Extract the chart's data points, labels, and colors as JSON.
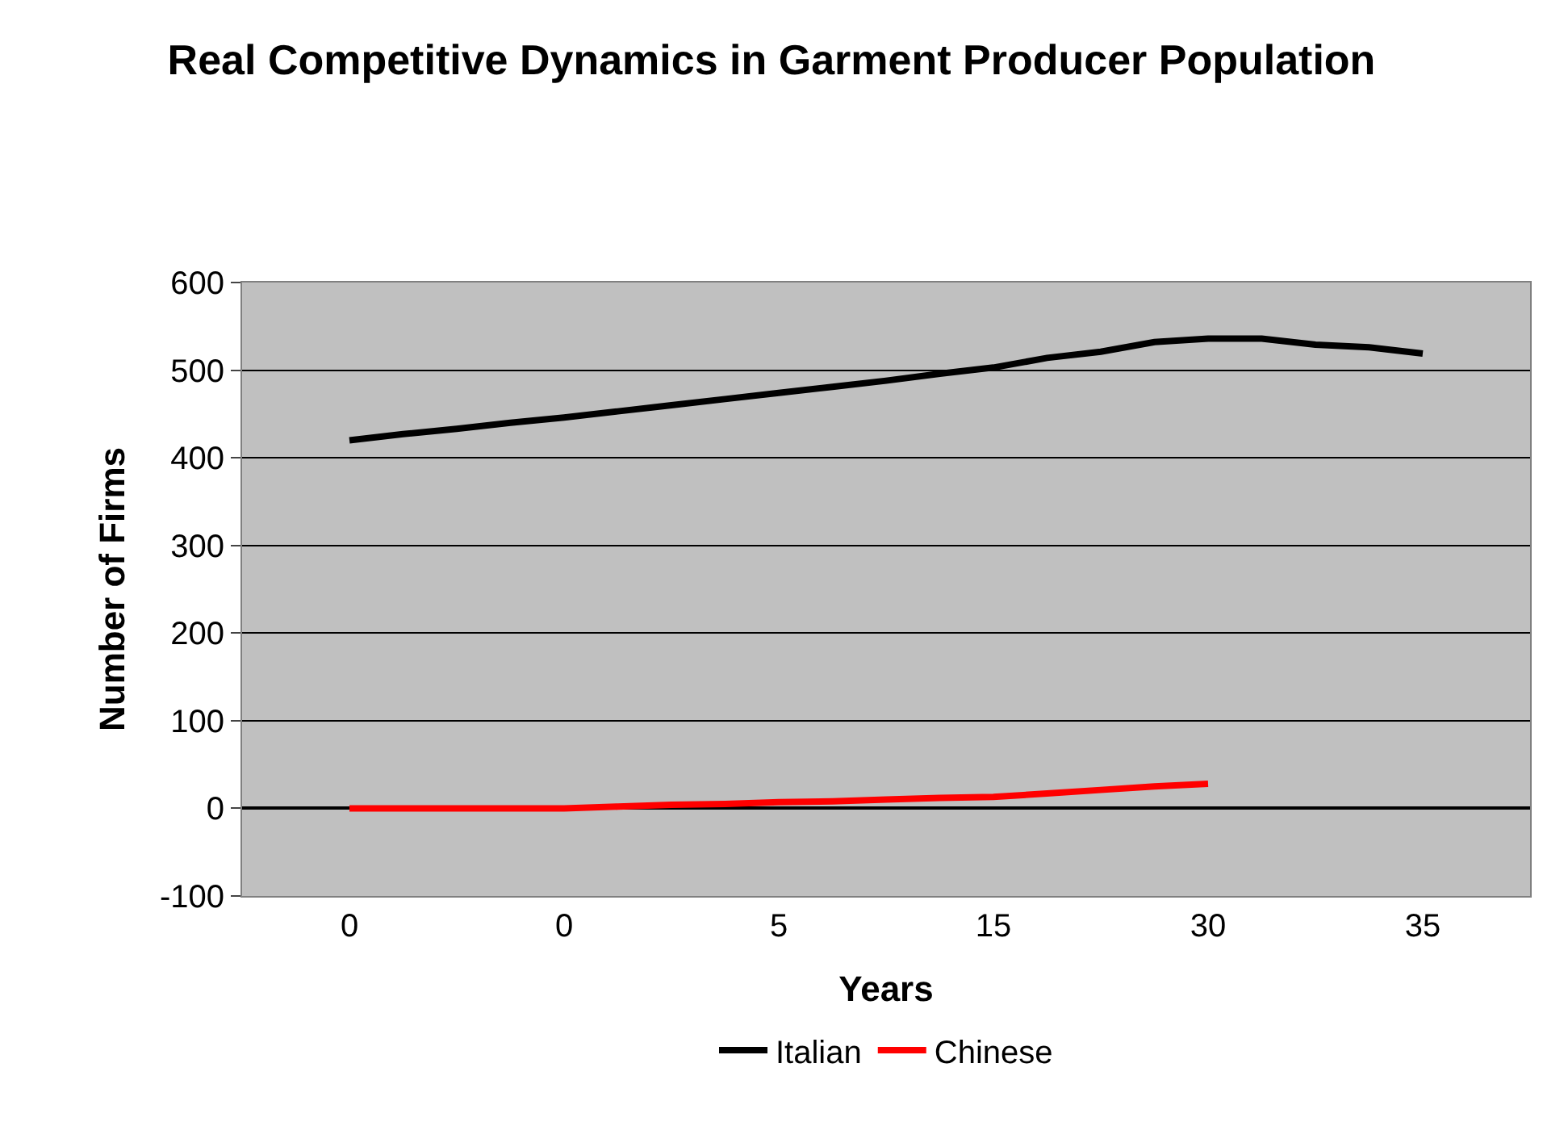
{
  "chart_data": {
    "type": "line",
    "title": "Real Competitive Dynamics in Garment Producer Population",
    "xlabel": "Years",
    "ylabel": "Number of Firms",
    "categories": [
      "0",
      null,
      null,
      null,
      "0",
      null,
      null,
      null,
      "5",
      null,
      null,
      null,
      "15",
      null,
      null,
      null,
      "30",
      null,
      null,
      null,
      "35"
    ],
    "series": [
      {
        "name": "Italian",
        "color": "#000000",
        "values": [
          420,
          427,
          433,
          440,
          446,
          453,
          460,
          467,
          474,
          481,
          488,
          496,
          503,
          514,
          521,
          532,
          536,
          536,
          529,
          526,
          519
        ]
      },
      {
        "name": "Chinese",
        "color": "#ff0000",
        "values": [
          0,
          0,
          0,
          0,
          0,
          2,
          4,
          5,
          7,
          8,
          10,
          12,
          13,
          17,
          21,
          25,
          28,
          null,
          null,
          null,
          null
        ]
      }
    ],
    "ylim": [
      -100,
      600
    ],
    "yticks": [
      -100,
      0,
      100,
      200,
      300,
      400,
      500,
      600
    ],
    "grid": "y",
    "legend": "bottom",
    "marker": "none",
    "line_style": "solid"
  }
}
